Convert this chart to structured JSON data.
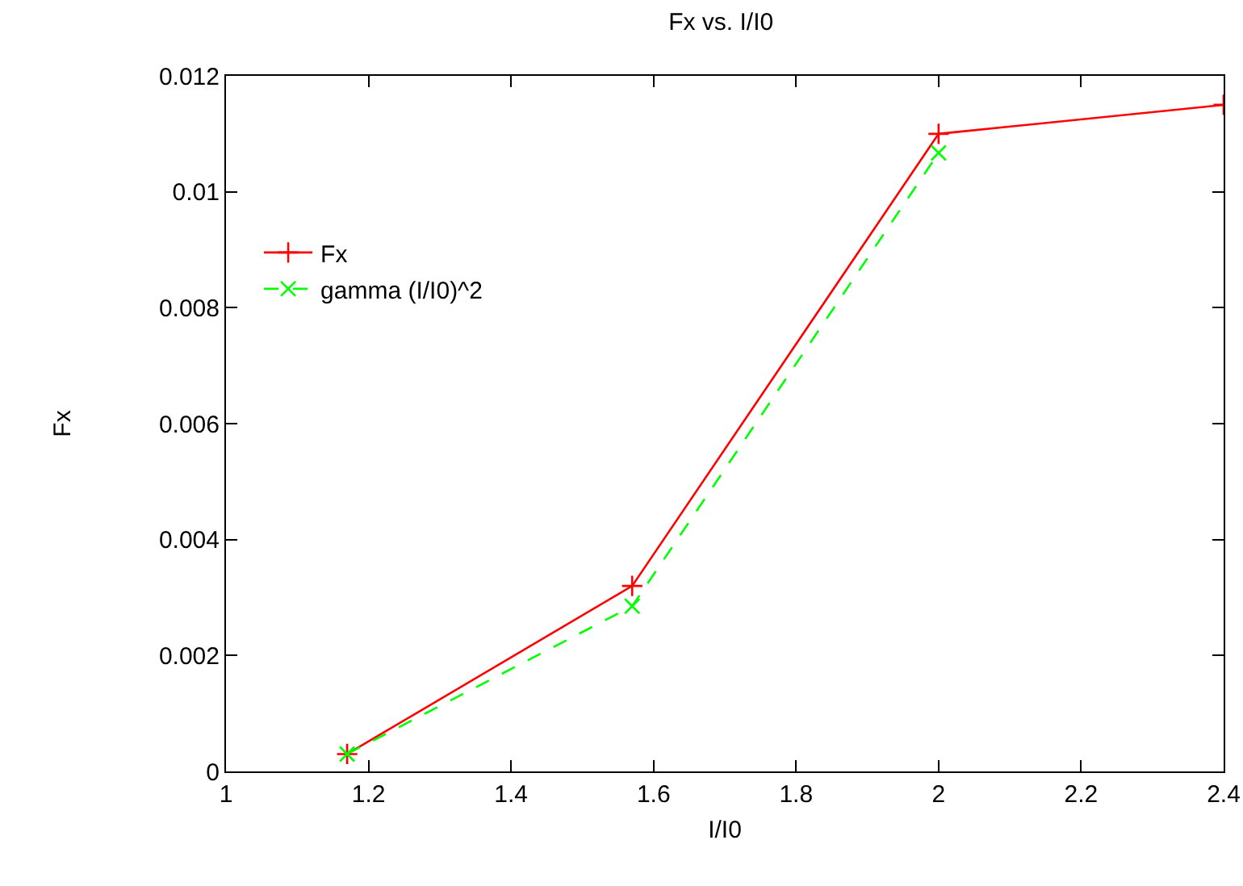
{
  "chart_data": {
    "type": "line",
    "title": "Fx vs. I/I0",
    "xlabel": "I/I0",
    "ylabel": "Fx",
    "xlim": [
      1,
      2.4
    ],
    "xticks": [
      1,
      1.2,
      1.4,
      1.6,
      1.8,
      2,
      2.2,
      2.4
    ],
    "ylim": [
      0,
      0.012
    ],
    "yticks": [
      0,
      0.002,
      0.004,
      0.006,
      0.008,
      0.01,
      0.012
    ],
    "grid": false,
    "legend": "left",
    "marker": "cross",
    "series": [
      {
        "name": "Fx",
        "color": "#ff0000",
        "line_style": "solid",
        "x": [
          1.17,
          1.57,
          2.0,
          2.4
        ],
        "values": [
          0.0003,
          0.0032,
          0.011,
          0.0115
        ]
      },
      {
        "name": "gamma (I/I0)^2",
        "color": "#00ff00",
        "line_style": "dashed",
        "x": [
          1.17,
          1.57,
          2.0
        ],
        "values": [
          0.0003,
          0.00285,
          0.01067
        ]
      }
    ]
  }
}
